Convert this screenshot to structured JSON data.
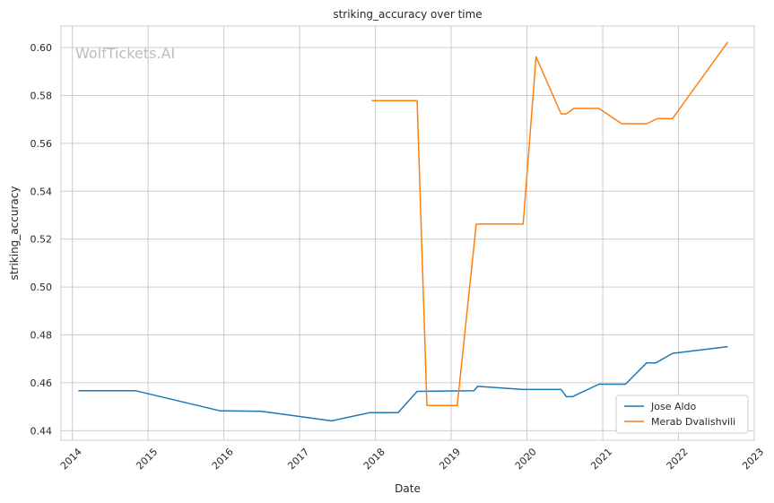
{
  "chart_data": {
    "type": "line",
    "title": "striking_accuracy over time",
    "xlabel": "Date",
    "ylabel": "striking_accuracy",
    "watermark": "WolfTickets.AI",
    "xlim": [
      2013.85,
      2023.0
    ],
    "ylim": [
      0.436,
      0.609
    ],
    "x_ticks": [
      2014,
      2015,
      2016,
      2017,
      2018,
      2019,
      2020,
      2021,
      2022,
      2023
    ],
    "y_ticks": [
      0.44,
      0.46,
      0.48,
      0.5,
      0.52,
      0.54,
      0.56,
      0.58,
      0.6
    ],
    "grid": true,
    "legend_position": "bottom-right",
    "series": [
      {
        "name": "Jose Aldo",
        "color": "#1f77b4",
        "points": [
          [
            2014.08,
            0.4567
          ],
          [
            2014.83,
            0.4567
          ],
          [
            2015.95,
            0.4483
          ],
          [
            2016.5,
            0.4481
          ],
          [
            2017.42,
            0.4441
          ],
          [
            2017.92,
            0.4475
          ],
          [
            2018.3,
            0.4475
          ],
          [
            2018.55,
            0.4564
          ],
          [
            2019.3,
            0.4567
          ],
          [
            2019.35,
            0.4585
          ],
          [
            2019.95,
            0.4572
          ],
          [
            2020.45,
            0.4572
          ],
          [
            2020.52,
            0.4542
          ],
          [
            2020.6,
            0.4542
          ],
          [
            2020.95,
            0.4594
          ],
          [
            2021.3,
            0.4594
          ],
          [
            2021.58,
            0.4683
          ],
          [
            2021.7,
            0.4683
          ],
          [
            2021.92,
            0.4723
          ],
          [
            2022.65,
            0.4751
          ]
        ]
      },
      {
        "name": "Merab Dvalishvili",
        "color": "#ff7f0e",
        "points": [
          [
            2017.95,
            0.5778
          ],
          [
            2018.55,
            0.5778
          ],
          [
            2018.68,
            0.4505
          ],
          [
            2019.08,
            0.4505
          ],
          [
            2019.33,
            0.5263
          ],
          [
            2019.95,
            0.5263
          ],
          [
            2020.12,
            0.5961
          ],
          [
            2020.45,
            0.5723
          ],
          [
            2020.52,
            0.5723
          ],
          [
            2020.62,
            0.5746
          ],
          [
            2020.95,
            0.5746
          ],
          [
            2021.25,
            0.5682
          ],
          [
            2021.58,
            0.5682
          ],
          [
            2021.72,
            0.5703
          ],
          [
            2021.92,
            0.5703
          ],
          [
            2022.65,
            0.6023
          ]
        ]
      }
    ]
  }
}
